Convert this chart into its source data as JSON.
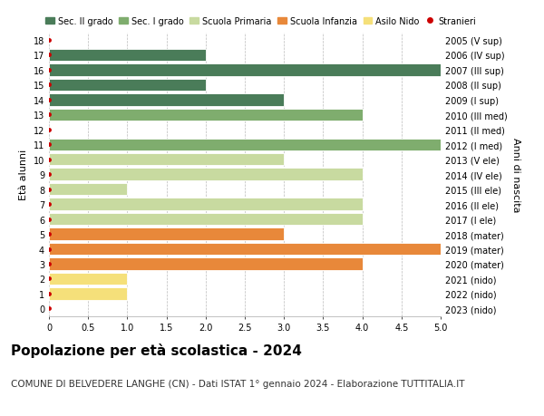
{
  "yticks": [
    0,
    1,
    2,
    3,
    4,
    5,
    6,
    7,
    8,
    9,
    10,
    11,
    12,
    13,
    14,
    15,
    16,
    17,
    18
  ],
  "right_labels": [
    "2023 (nido)",
    "2022 (nido)",
    "2021 (nido)",
    "2020 (mater)",
    "2019 (mater)",
    "2018 (mater)",
    "2017 (I ele)",
    "2016 (II ele)",
    "2015 (III ele)",
    "2014 (IV ele)",
    "2013 (V ele)",
    "2012 (I med)",
    "2011 (II med)",
    "2010 (III med)",
    "2009 (I sup)",
    "2008 (II sup)",
    "2007 (III sup)",
    "2006 (IV sup)",
    "2005 (V sup)"
  ],
  "bars": [
    {
      "y": 0,
      "value": 0,
      "color": "#f5e07a"
    },
    {
      "y": 1,
      "value": 1.0,
      "color": "#f5e07a"
    },
    {
      "y": 2,
      "value": 1.0,
      "color": "#f5e07a"
    },
    {
      "y": 3,
      "value": 4.0,
      "color": "#e8883a"
    },
    {
      "y": 4,
      "value": 5.0,
      "color": "#e8883a"
    },
    {
      "y": 5,
      "value": 3.0,
      "color": "#e8883a"
    },
    {
      "y": 6,
      "value": 4.0,
      "color": "#c8daa0"
    },
    {
      "y": 7,
      "value": 4.0,
      "color": "#c8daa0"
    },
    {
      "y": 8,
      "value": 1.0,
      "color": "#c8daa0"
    },
    {
      "y": 9,
      "value": 4.0,
      "color": "#c8daa0"
    },
    {
      "y": 10,
      "value": 3.0,
      "color": "#c8daa0"
    },
    {
      "y": 11,
      "value": 5.0,
      "color": "#7fad6e"
    },
    {
      "y": 12,
      "value": 0,
      "color": "#7fad6e"
    },
    {
      "y": 13,
      "value": 4.0,
      "color": "#7fad6e"
    },
    {
      "y": 14,
      "value": 3.0,
      "color": "#4a7c59"
    },
    {
      "y": 15,
      "value": 2.0,
      "color": "#4a7c59"
    },
    {
      "y": 16,
      "value": 5.0,
      "color": "#4a7c59"
    },
    {
      "y": 17,
      "value": 2.0,
      "color": "#4a7c59"
    },
    {
      "y": 18,
      "value": 0,
      "color": "#4a7c59"
    }
  ],
  "stranieri_dots": [
    0,
    1,
    2,
    3,
    4,
    5,
    6,
    7,
    8,
    9,
    10,
    11,
    12,
    13,
    14,
    15,
    16,
    17,
    18
  ],
  "dot_color": "#cc0000",
  "xlim": [
    0,
    5.0
  ],
  "xticks": [
    0,
    0.5,
    1.0,
    1.5,
    2.0,
    2.5,
    3.0,
    3.5,
    4.0,
    4.5,
    5.0
  ],
  "xtick_labels": [
    "0",
    "0.5",
    "1.0",
    "1.5",
    "2.0",
    "2.5",
    "3.0",
    "3.5",
    "4.0",
    "4.5",
    "5.0"
  ],
  "ylabel_left": "Età alunni",
  "ylabel_right": "Anni di nascita",
  "title": "Popolazione per età scolastica - 2024",
  "subtitle": "COMUNE DI BELVEDERE LANGHE (CN) - Dati ISTAT 1° gennaio 2024 - Elaborazione TUTTITALIA.IT",
  "legend_items": [
    {
      "label": "Sec. II grado",
      "color": "#4a7c59",
      "type": "patch"
    },
    {
      "label": "Sec. I grado",
      "color": "#7fad6e",
      "type": "patch"
    },
    {
      "label": "Scuola Primaria",
      "color": "#c8daa0",
      "type": "patch"
    },
    {
      "label": "Scuola Infanzia",
      "color": "#e8883a",
      "type": "patch"
    },
    {
      "label": "Asilo Nido",
      "color": "#f5e07a",
      "type": "patch"
    },
    {
      "label": "Stranieri",
      "color": "#cc0000",
      "type": "dot"
    }
  ],
  "bar_height": 0.82,
  "bg_color": "#ffffff",
  "grid_color": "#bbbbbb",
  "title_fontsize": 11,
  "subtitle_fontsize": 7.5,
  "tick_fontsize": 7,
  "label_fontsize": 8,
  "legend_fontsize": 7
}
